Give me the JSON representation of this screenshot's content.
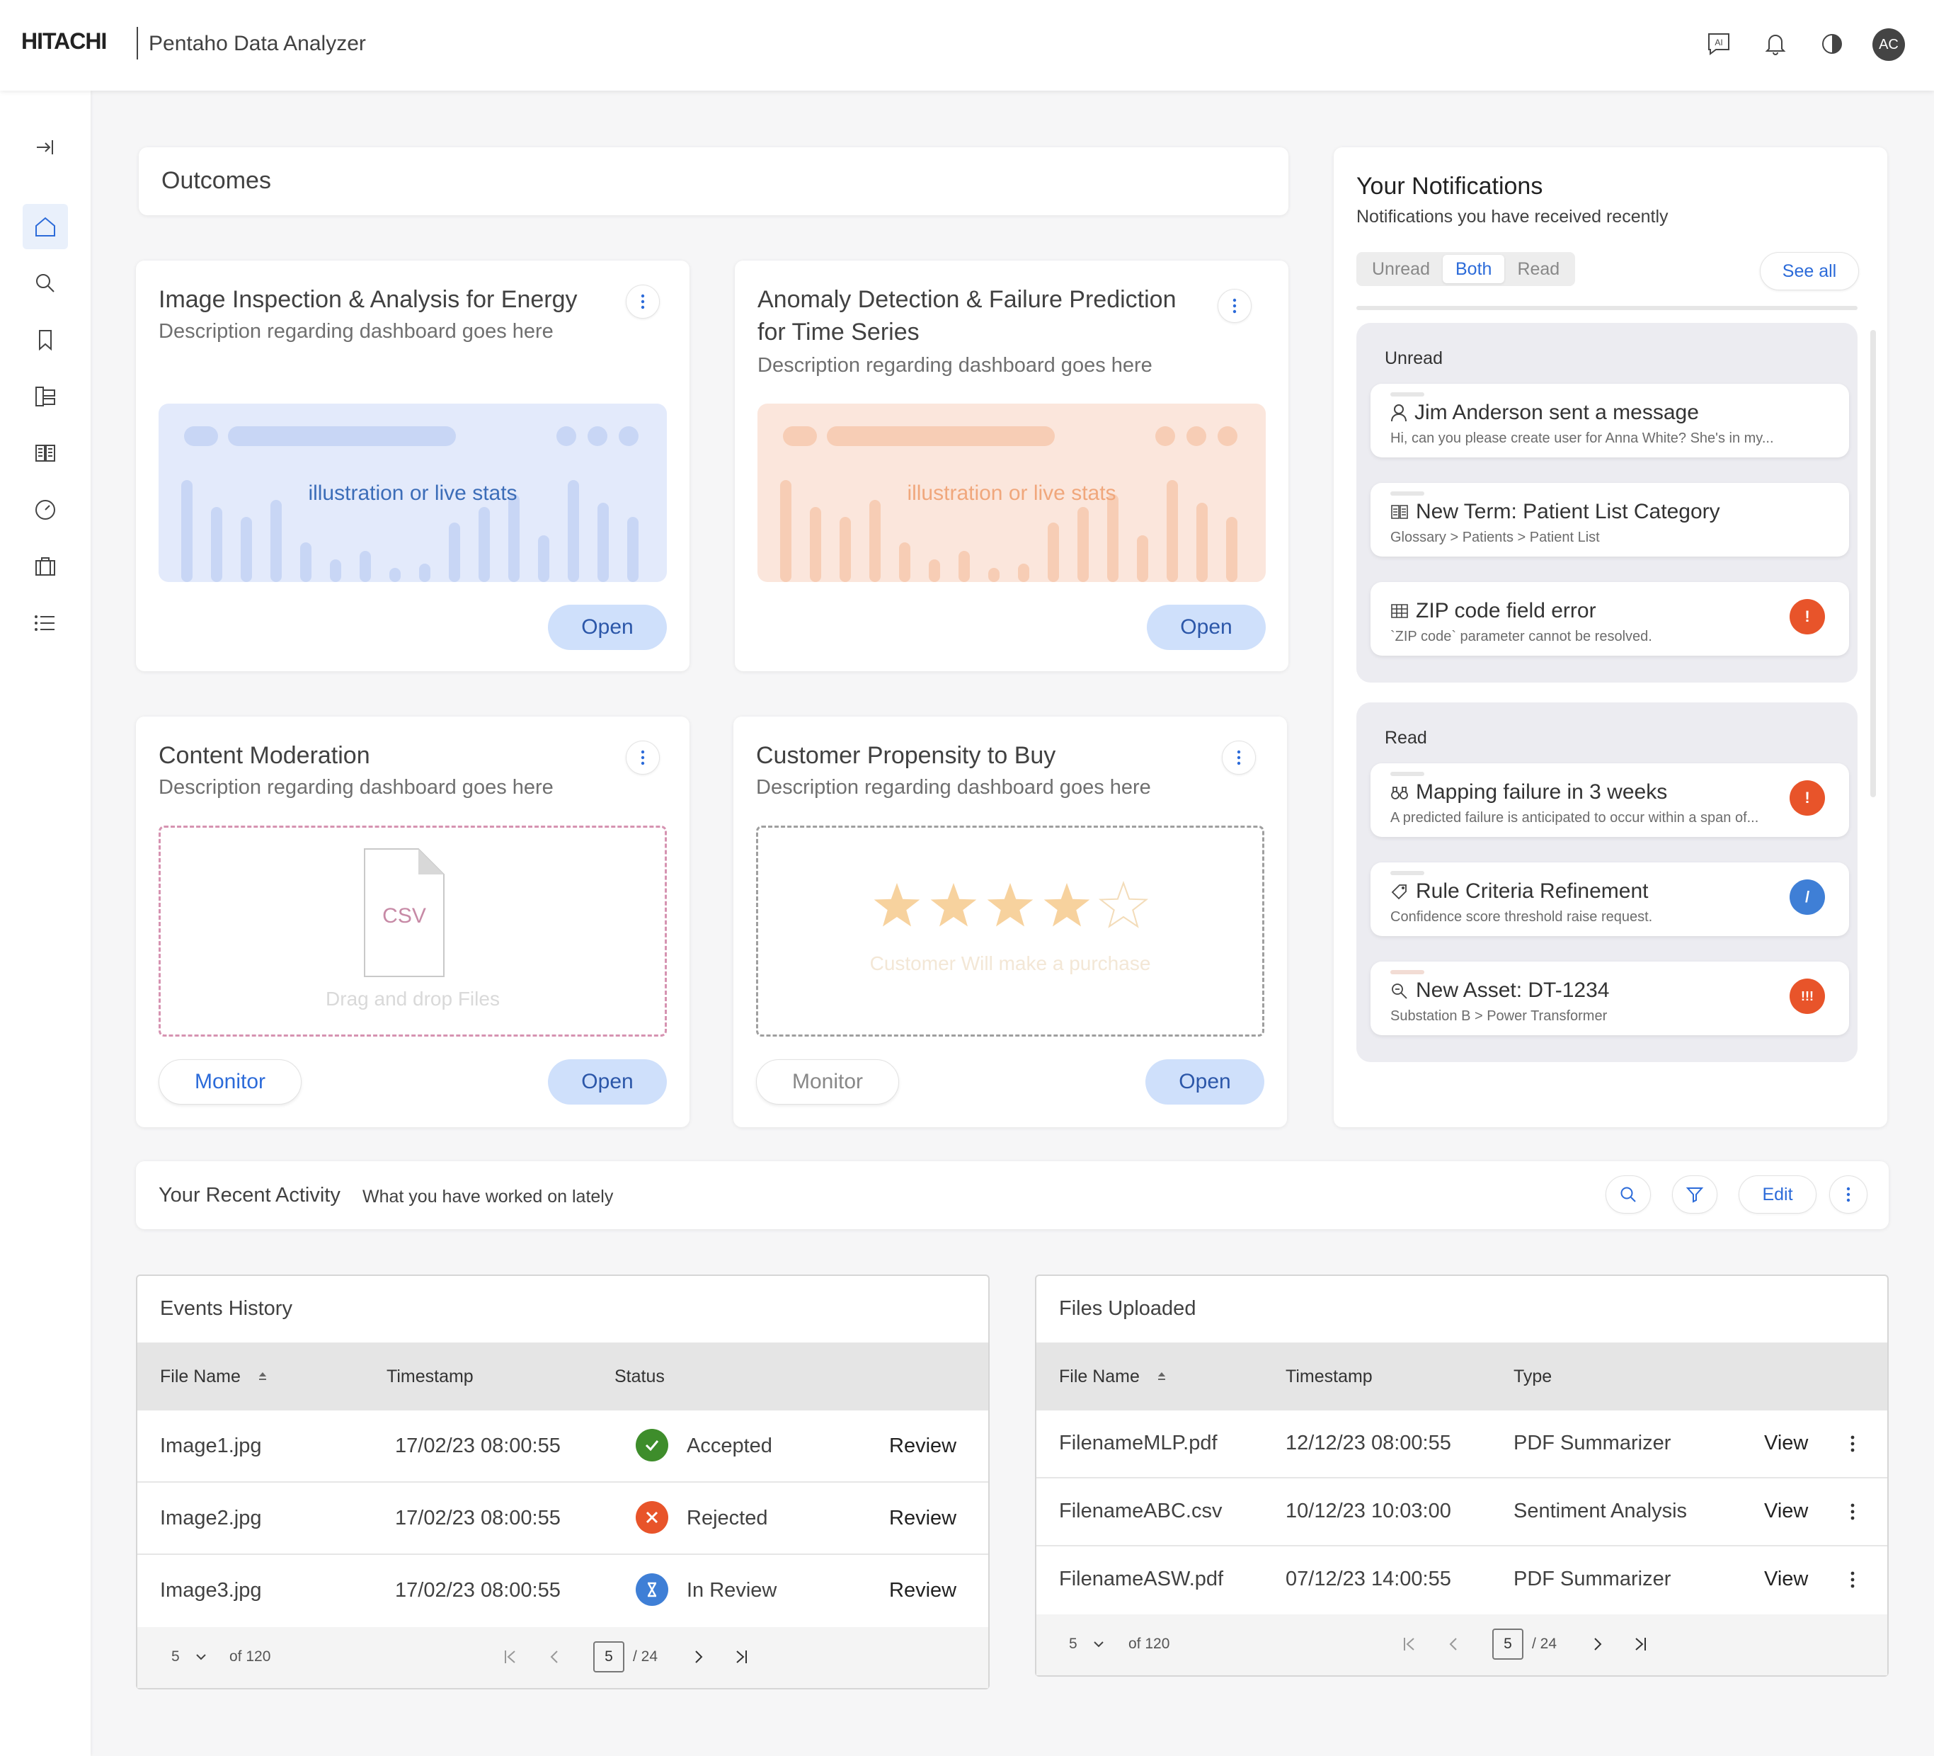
{
  "header": {
    "brand": "HITACHI",
    "app_title": "Pentaho Data Analyzer",
    "ai_icon_label": "AI",
    "avatar_initials": "AC"
  },
  "sidebar": {
    "items": [
      "collapse-icon",
      "home-icon",
      "search-icon",
      "bookmark-icon",
      "hierarchy-icon",
      "book-icon",
      "speedometer-icon",
      "briefcase-icon",
      "list-icon"
    ]
  },
  "outcomes": {
    "title": "Outcomes",
    "cards": [
      {
        "title": "Image Inspection & Analysis for Energy",
        "description": "Description regarding dashboard goes here",
        "illustration_text": "illustration or live stats",
        "open_label": "Open"
      },
      {
        "title_line1": "Anomaly Detection & Failure Prediction",
        "title_line2": "for Time Series",
        "description": "Description regarding dashboard goes here",
        "illustration_text": "illustration or live stats",
        "open_label": "Open"
      },
      {
        "title": "Content Moderation",
        "description": "Description regarding dashboard goes here",
        "file_label": "CSV",
        "drop_text": "Drag and drop Files",
        "monitor_label": "Monitor",
        "open_label": "Open"
      },
      {
        "title": "Customer Propensity to Buy",
        "description": "Description regarding dashboard goes here",
        "rating": 4,
        "rating_max": 5,
        "rating_text": "Customer Will make a purchase",
        "monitor_label": "Monitor",
        "open_label": "Open"
      }
    ],
    "colors": {
      "blue_illustration": "#e3eafb",
      "orange_illustration": "#fbe6dc",
      "primary": "#2c6bd9",
      "open_bg": "#cfe0fb"
    }
  },
  "notifications": {
    "title": "Your Notifications",
    "subtitle": "Notifications you have received recently",
    "tabs": [
      "Unread",
      "Both",
      "Read"
    ],
    "active_tab": "Both",
    "see_all": "See all",
    "unread_title": "Unread",
    "read_title": "Read",
    "unread": [
      {
        "title": "Jim Anderson sent a message",
        "subtitle": "Hi, can you please create user for Anna White? She's in my...",
        "icon": "user-icon"
      },
      {
        "title": "New Term: Patient List Category",
        "subtitle": "Glossary > Patients > Patient List",
        "icon": "book-icon"
      },
      {
        "title": "ZIP code field error",
        "subtitle": "`ZIP code` parameter cannot be resolved.",
        "icon": "table-icon",
        "badge": "!",
        "badge_color": "#e8542a"
      }
    ],
    "read": [
      {
        "title": "Mapping failure in 3 weeks",
        "subtitle": "A predicted failure is anticipated to occur within a span of...",
        "icon": "binoculars-icon",
        "badge": "!",
        "badge_color": "#e8542a"
      },
      {
        "title": "Rule Criteria Refinement",
        "subtitle": "Confidence score threshold raise request.",
        "icon": "tag-icon",
        "badge": "/",
        "badge_color": "#3f7fd6"
      },
      {
        "title": "New Asset: DT-1234",
        "subtitle": "Substation B > Power Transformer",
        "icon": "search-doc-icon",
        "badge": "!!!",
        "badge_color": "#e8542a"
      }
    ]
  },
  "activity": {
    "title": "Your Recent Activity",
    "subtitle": "What you have worked on lately",
    "edit_label": "Edit"
  },
  "events": {
    "title": "Events History",
    "columns": [
      "File Name",
      "Timestamp",
      "Status"
    ],
    "rows": [
      {
        "file": "Image1.jpg",
        "timestamp": "17/02/23 08:00:55",
        "status": "Accepted",
        "action": "Review"
      },
      {
        "file": "Image2.jpg",
        "timestamp": "17/02/23 08:00:55",
        "status": "Rejected",
        "action": "Review"
      },
      {
        "file": "Image3.jpg",
        "timestamp": "17/02/23 08:00:55",
        "status": "In Review",
        "action": "Review"
      }
    ],
    "pager": {
      "page_size": "5",
      "of_total": "of 120",
      "page": "5",
      "of_pages": "/ 24"
    }
  },
  "files": {
    "title": "Files Uploaded",
    "columns": [
      "File Name",
      "Timestamp",
      "Type"
    ],
    "rows": [
      {
        "file": "FilenameMLP.pdf",
        "timestamp": "12/12/23 08:00:55",
        "type": "PDF Summarizer",
        "action": "View"
      },
      {
        "file": "FilenameABC.csv",
        "timestamp": "10/12/23 10:03:00",
        "type": "Sentiment Analysis",
        "action": "View"
      },
      {
        "file": "FilenameASW.pdf",
        "timestamp": "07/12/23 14:00:55",
        "type": "PDF Summarizer",
        "action": "View"
      }
    ],
    "pager": {
      "page_size": "5",
      "of_total": "of 120",
      "page": "5",
      "of_pages": "/ 24"
    }
  }
}
